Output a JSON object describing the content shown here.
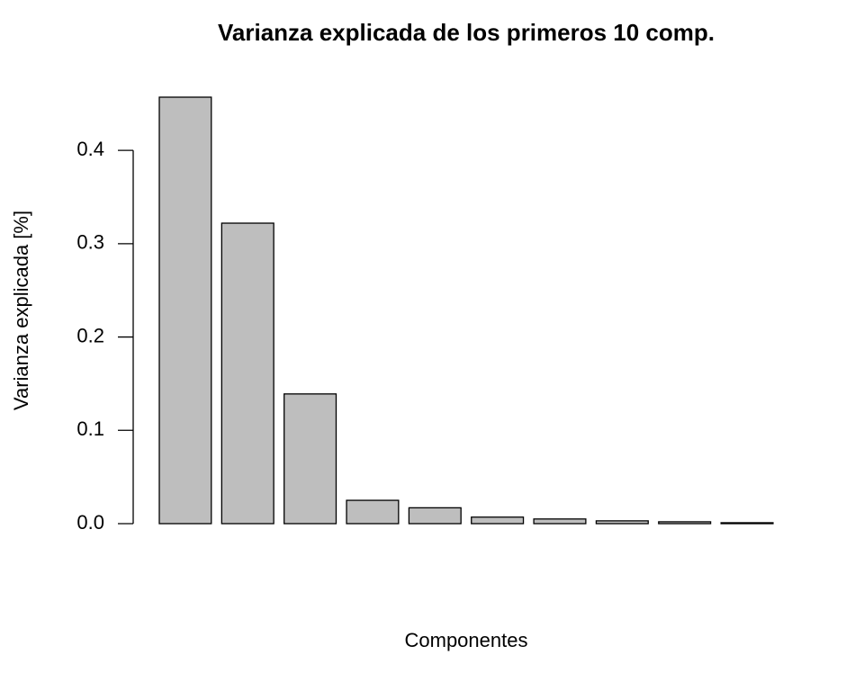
{
  "chart_data": {
    "type": "bar",
    "title": "Varianza explicada de los primeros 10 comp.",
    "x_label": "Componentes",
    "y_label": "Varianza explicada [%]",
    "values": [
      0.457,
      0.322,
      0.139,
      0.025,
      0.017,
      0.007,
      0.005,
      0.003,
      0.002,
      0.001
    ],
    "color": "#bebebe",
    "ylim": [
      0,
      0.457
    ],
    "yticks": [
      {
        "value": 0,
        "label": "0.0"
      },
      0.1,
      0.2,
      0.3,
      0.4
    ]
  }
}
